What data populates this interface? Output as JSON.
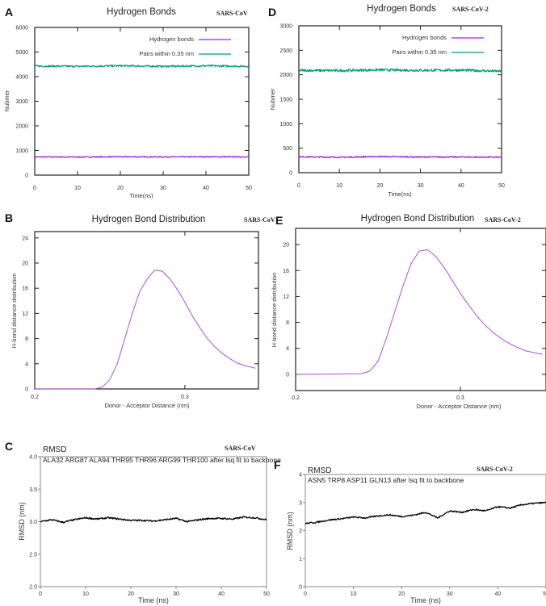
{
  "colors": {
    "hbond": "#a020f0",
    "pairs": "#009e73",
    "dist": "#b04ee0",
    "rmsd": "#000000",
    "axis": "#333333"
  },
  "chart_data": [
    {
      "id": "A",
      "type": "line",
      "panel_label": "A",
      "title": "Hydrogen Bonds",
      "subtitle": "SARS-CoV",
      "xlabel": "Time(ns)",
      "ylabel": "Nubmer",
      "xlim": [
        0,
        50
      ],
      "ylim": [
        0,
        6000
      ],
      "xticks": [
        0,
        10,
        20,
        30,
        40,
        50
      ],
      "yticks": [
        0,
        1000,
        2000,
        3000,
        4000,
        5000,
        6000
      ],
      "legend_position": "top-right",
      "series": [
        {
          "name": "Hydrogen bonds",
          "color_key": "hbond",
          "mean": 740,
          "noise": 20,
          "x": [
            0,
            10,
            20,
            30,
            40,
            50
          ],
          "values": [
            740,
            735,
            745,
            740,
            745,
            740
          ]
        },
        {
          "name": "Pairs within 0.35 nm",
          "color_key": "pairs",
          "mean": 4430,
          "noise": 35,
          "x": [
            0,
            10,
            20,
            30,
            40,
            50
          ],
          "values": [
            4430,
            4420,
            4440,
            4420,
            4440,
            4420
          ]
        }
      ]
    },
    {
      "id": "D",
      "type": "line",
      "panel_label": "D",
      "title": "Hydrogen Bonds",
      "subtitle": "SARS-CoV-2",
      "xlabel": "Time(ns)",
      "ylabel": "Nubmer",
      "xlim": [
        0,
        50
      ],
      "ylim": [
        0,
        3000
      ],
      "xticks": [
        0,
        10,
        20,
        30,
        40,
        50
      ],
      "yticks": [
        0,
        500,
        1000,
        1500,
        2000,
        2500,
        3000
      ],
      "legend_position": "top-right",
      "series": [
        {
          "name": "Hydrogen bonds",
          "color_key": "hbond",
          "mean": 320,
          "noise": 12,
          "x": [
            0,
            10,
            20,
            30,
            40,
            50
          ],
          "values": [
            325,
            315,
            330,
            320,
            320,
            315
          ]
        },
        {
          "name": "Pairs within 0.35 nm",
          "color_key": "pairs",
          "mean": 2090,
          "noise": 25,
          "x": [
            0,
            10,
            20,
            30,
            40,
            50
          ],
          "values": [
            2090,
            2085,
            2100,
            2090,
            2095,
            2070
          ]
        }
      ]
    },
    {
      "id": "B",
      "type": "line",
      "panel_label": "B",
      "title": "Hydrogen Bond Distribution",
      "subtitle": "SARS-CoV",
      "xlabel": "Donor - Acceptor Distance (nm)",
      "ylabel": "H-bond distance distribution",
      "xlim": [
        0.2,
        0.349
      ],
      "ylim": [
        0,
        25
      ],
      "xticks": [
        0.2,
        0.3
      ],
      "yticks": [
        0,
        4,
        8,
        12,
        16,
        20,
        24
      ],
      "series": [
        {
          "name": "distribution",
          "color_key": "dist",
          "x": [
            0.2,
            0.24,
            0.245,
            0.25,
            0.255,
            0.26,
            0.265,
            0.27,
            0.275,
            0.28,
            0.285,
            0.29,
            0.295,
            0.3,
            0.305,
            0.31,
            0.315,
            0.32,
            0.325,
            0.33,
            0.335,
            0.34,
            0.347
          ],
          "values": [
            0,
            0,
            0.3,
            1.5,
            4,
            8,
            12,
            15.5,
            17.5,
            18.9,
            18.7,
            17.5,
            15.8,
            13.8,
            11.6,
            9.7,
            8,
            6.7,
            5.6,
            4.8,
            4.1,
            3.7,
            3.3
          ]
        }
      ]
    },
    {
      "id": "E",
      "type": "line",
      "panel_label": "E",
      "title": "Hydrogen Bond Distribution",
      "subtitle": "SARS-CoV-2",
      "xlabel": "Donor - Acceptor Distance (nm)",
      "ylabel": "H-bond distance distribution",
      "xlim": [
        0.2,
        0.352
      ],
      "ylim": [
        -2.5,
        22.5
      ],
      "xticks": [
        0.2,
        0.3
      ],
      "yticks": [
        0,
        4,
        8,
        12,
        16,
        20
      ],
      "series": [
        {
          "name": "distribution",
          "color_key": "dist",
          "x": [
            0.2,
            0.24,
            0.245,
            0.25,
            0.255,
            0.26,
            0.265,
            0.27,
            0.275,
            0.28,
            0.285,
            0.29,
            0.295,
            0.3,
            0.305,
            0.31,
            0.315,
            0.32,
            0.325,
            0.33,
            0.335,
            0.34,
            0.35
          ],
          "values": [
            0,
            0.1,
            0.5,
            2,
            5.5,
            9.5,
            13.5,
            17,
            19,
            19.2,
            18.2,
            16.5,
            14.5,
            12.5,
            10.7,
            9,
            7.6,
            6.4,
            5.5,
            4.7,
            4.1,
            3.6,
            3.1
          ]
        }
      ]
    },
    {
      "id": "C",
      "type": "line",
      "panel_label": "C",
      "title": "RMSD",
      "subtitle": "SARS-CoV",
      "description": "ALA32 ARG87 ALA94 THR95 THR96 ARG99 THR100 after lsq fit to backbone",
      "xlabel": "Time (ns)",
      "ylabel": "RMSD (nm)",
      "xlim": [
        0,
        50
      ],
      "ylim": [
        2.0,
        4.0
      ],
      "xticks": [
        0,
        10,
        20,
        30,
        40,
        50
      ],
      "yticks": [
        2.0,
        2.5,
        3.0,
        3.5,
        4.0
      ],
      "ytick_labels": [
        "2.0",
        "2.5",
        "3.0",
        "3.5",
        "4.0"
      ],
      "series": [
        {
          "name": "RMSD",
          "color_key": "rmsd",
          "noise": 0.012,
          "x": [
            0,
            2.5,
            5,
            7.5,
            10,
            12.5,
            15,
            17.5,
            20,
            22.5,
            25,
            27.5,
            30,
            32.5,
            35,
            37.5,
            40,
            42.5,
            45,
            47.5,
            50
          ],
          "values": [
            3.0,
            3.03,
            2.99,
            3.03,
            3.06,
            3.04,
            3.06,
            3.04,
            3.02,
            3.02,
            3.01,
            3.03,
            3.05,
            3.0,
            3.03,
            3.05,
            3.05,
            3.04,
            3.07,
            3.06,
            3.03
          ]
        }
      ]
    },
    {
      "id": "F",
      "type": "line",
      "panel_label": "F",
      "title": "RMSD",
      "subtitle": "SARS-CoV-2",
      "description": "ASN5 TRP8 ASP11 GLN13 after lsq fit to backbone",
      "xlabel": "Time (ns)",
      "ylabel": "RMSD (nm)",
      "xlim": [
        0,
        50
      ],
      "ylim": [
        0,
        4
      ],
      "xticks": [
        0,
        10,
        20,
        30,
        40,
        50
      ],
      "yticks": [
        0,
        1,
        2,
        3,
        4
      ],
      "ytick_labels": [
        "0",
        "1",
        "2",
        "3",
        "4"
      ],
      "series": [
        {
          "name": "RMSD",
          "color_key": "rmsd",
          "noise": 0.025,
          "x": [
            0,
            2.5,
            5,
            7.5,
            10,
            12.5,
            15,
            17.5,
            20,
            22.5,
            25,
            27.5,
            30,
            32.5,
            35,
            37.5,
            40,
            42.5,
            45,
            47.5,
            50
          ],
          "values": [
            2.25,
            2.3,
            2.38,
            2.42,
            2.48,
            2.45,
            2.52,
            2.56,
            2.5,
            2.55,
            2.65,
            2.45,
            2.7,
            2.65,
            2.75,
            2.7,
            2.85,
            2.8,
            2.92,
            2.97,
            3.0
          ]
        }
      ]
    }
  ]
}
